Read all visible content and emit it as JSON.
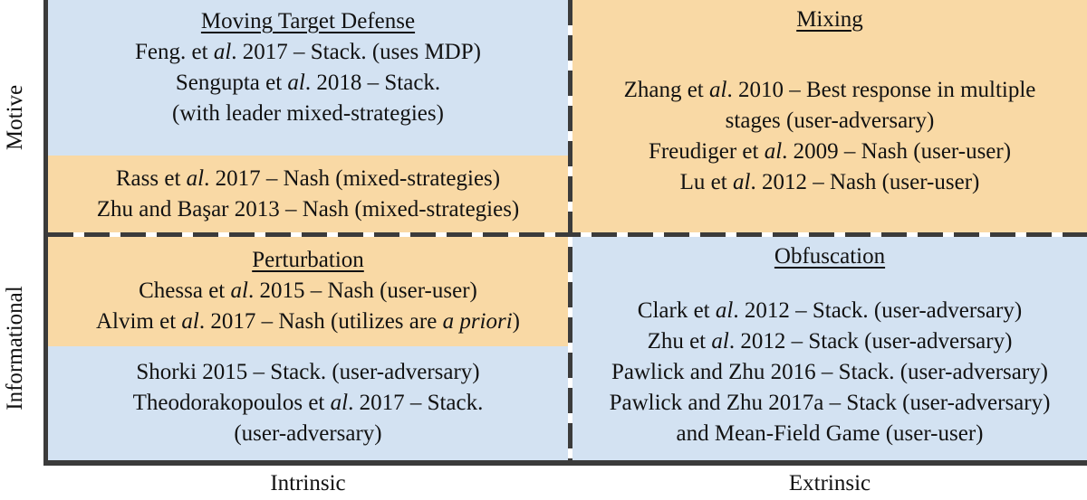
{
  "colors": {
    "blue": "#d3e2f2",
    "orange": "#f9d9a5",
    "line": "#3b3b3b",
    "text": "#121212"
  },
  "axis": {
    "y_top_label": "Motive",
    "y_bottom_label": "Informational",
    "x_left_label": "Intrinsic",
    "x_right_label": "Extrinsic"
  },
  "quadrants": {
    "top_left": {
      "blocks": [
        {
          "bg": "blue",
          "title": "Moving Target Defense",
          "lines": [
            [
              {
                "t": "Feng. et "
              },
              {
                "t": "al",
                "i": true
              },
              {
                "t": ". 2017 – Stack. (uses MDP)"
              }
            ],
            [
              {
                "t": "Sengupta et "
              },
              {
                "t": "al",
                "i": true
              },
              {
                "t": ". 2018 – Stack."
              }
            ],
            [
              {
                "t": "(with leader mixed-strategies)"
              }
            ]
          ]
        },
        {
          "bg": "orange",
          "lines": [
            [
              {
                "t": "Rass et "
              },
              {
                "t": "al",
                "i": true
              },
              {
                "t": ". 2017 – Nash (mixed-strategies)"
              }
            ],
            [
              {
                "t": "Zhu and Başar 2013 – Nash (mixed-strategies)"
              }
            ]
          ]
        }
      ]
    },
    "top_right": {
      "blocks": [
        {
          "bg": "orange",
          "title": "Mixing",
          "gap_after_title": "lg",
          "lines": [
            [
              {
                "t": "Zhang et "
              },
              {
                "t": "al",
                "i": true
              },
              {
                "t": ". 2010 – Best response in multiple"
              }
            ],
            [
              {
                "t": "stages (user-adversary)"
              }
            ],
            [
              {
                "t": "Freudiger et "
              },
              {
                "t": "al",
                "i": true
              },
              {
                "t": ". 2009 – Nash (user-user)"
              }
            ],
            [
              {
                "t": "Lu et "
              },
              {
                "t": "al",
                "i": true
              },
              {
                "t": ". 2012 – Nash (user-user)"
              }
            ]
          ]
        }
      ]
    },
    "bottom_left": {
      "blocks": [
        {
          "bg": "orange",
          "title": "Perturbation",
          "lines": [
            [
              {
                "t": "Chessa et "
              },
              {
                "t": "al",
                "i": true
              },
              {
                "t": ". 2015 – Nash (user-user)"
              }
            ],
            [
              {
                "t": "Alvim et "
              },
              {
                "t": "al",
                "i": true
              },
              {
                "t": ". 2017 – Nash (utilizes are "
              },
              {
                "t": "a priori",
                "i": true
              },
              {
                "t": ")"
              }
            ]
          ]
        },
        {
          "bg": "blue",
          "lines": [
            [
              {
                "t": "Shorki 2015 – Stack. (user-adversary)"
              }
            ],
            [
              {
                "t": "Theodorakopoulos et "
              },
              {
                "t": "al",
                "i": true
              },
              {
                "t": ". 2017 – Stack."
              }
            ],
            [
              {
                "t": "(user-adversary)"
              }
            ]
          ]
        }
      ]
    },
    "bottom_right": {
      "blocks": [
        {
          "bg": "blue",
          "title": "Obfuscation",
          "gap_after_title": "sm",
          "lines": [
            [
              {
                "t": "Clark et "
              },
              {
                "t": "al",
                "i": true
              },
              {
                "t": ". 2012 – Stack. (user-adversary)"
              }
            ],
            [
              {
                "t": "Zhu et "
              },
              {
                "t": "al",
                "i": true
              },
              {
                "t": ". 2012 – Stack (user-adversary)"
              }
            ],
            [
              {
                "t": "Pawlick and Zhu 2016 – Stack. (user-adversary)"
              }
            ],
            [
              {
                "t": "Pawlick and Zhu 2017a – Stack (user-adversary)"
              }
            ],
            [
              {
                "t": "and Mean-Field Game (user-user)"
              }
            ]
          ]
        }
      ]
    }
  }
}
